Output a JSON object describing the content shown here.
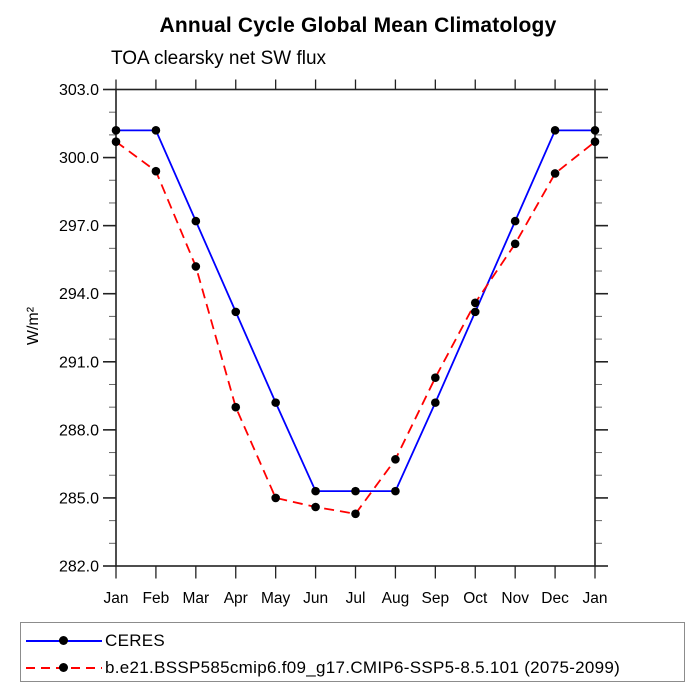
{
  "page": {
    "title": "Annual Cycle Global Mean Climatology",
    "subtitle": "TOA clearsky net SW flux"
  },
  "chart_data": {
    "type": "line",
    "title": "Annual Cycle Global Mean Climatology",
    "subtitle": "TOA clearsky net SW flux",
    "xlabel": "",
    "ylabel": "W/m²",
    "categories": [
      "Jan",
      "Feb",
      "Mar",
      "Apr",
      "May",
      "Jun",
      "Jul",
      "Aug",
      "Sep",
      "Oct",
      "Nov",
      "Dec",
      "Jan"
    ],
    "ylim": [
      282.0,
      303.0
    ],
    "ytick_interval": 3.0,
    "ytick_minor_interval": 1.0,
    "ytick_labels": [
      "282.0",
      "285.0",
      "288.0",
      "291.0",
      "294.0",
      "297.0",
      "300.0",
      "303.0"
    ],
    "grid": false,
    "legend_position": "bottom",
    "frame_color": "#222222",
    "marker": "filled-circle",
    "marker_color": "#000000",
    "series": [
      {
        "name": "CERES",
        "color": "#0000ff",
        "style": "solid",
        "marker": "filled-circle",
        "marker_color": "#000000",
        "values": [
          301.2,
          301.2,
          297.2,
          293.2,
          289.2,
          285.3,
          285.3,
          285.3,
          289.2,
          293.2,
          297.2,
          301.2,
          301.2
        ]
      },
      {
        "name": "b.e21.BSSP585cmip6.f09_g17.CMIP6-SSP5-8.5.101 (2075-2099)",
        "color": "#ff0000",
        "style": "dashed",
        "marker": "filled-circle",
        "marker_color": "#000000",
        "values": [
          300.7,
          299.4,
          295.2,
          289.0,
          285.0,
          284.6,
          284.3,
          286.7,
          290.3,
          293.6,
          296.2,
          299.3,
          300.7
        ]
      }
    ]
  }
}
